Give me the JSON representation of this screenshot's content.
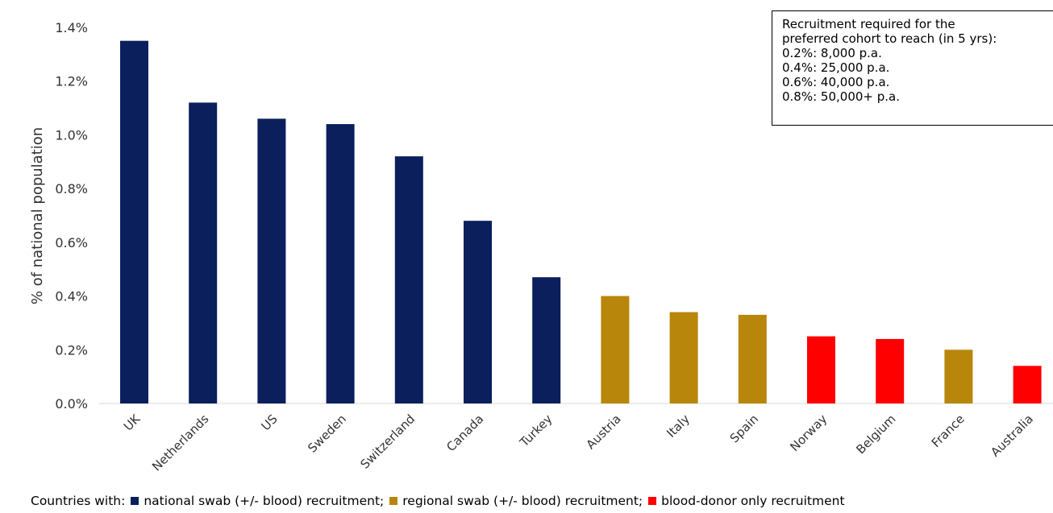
{
  "chart_data": {
    "type": "bar",
    "title": "",
    "xlabel": "",
    "ylabel": "% of national population",
    "ylim": [
      0,
      1.4
    ],
    "yticks": [
      "0.0%",
      "0.2%",
      "0.4%",
      "0.6%",
      "0.8%",
      "1.0%",
      "1.2%",
      "1.4%"
    ],
    "ytick_values": [
      0,
      0.2,
      0.4,
      0.6,
      0.8,
      1.0,
      1.2,
      1.4
    ],
    "grid": false,
    "categories": [
      "UK",
      "Netherlands",
      "US",
      "Sweden",
      "Switzerland",
      "Canada",
      "Turkey",
      "Austria",
      "Italy",
      "Spain",
      "Norway",
      "Belgium",
      "France",
      "Australia"
    ],
    "values": [
      1.35,
      1.12,
      1.06,
      1.04,
      0.92,
      0.68,
      0.47,
      0.4,
      0.34,
      0.33,
      0.25,
      0.24,
      0.2,
      0.14
    ],
    "groups": [
      "national",
      "national",
      "national",
      "national",
      "national",
      "national",
      "national",
      "regional",
      "regional",
      "regional",
      "blood-donor",
      "blood-donor",
      "regional",
      "blood-donor"
    ],
    "colors": {
      "national": "#0a1f5c",
      "regional": "#b8860b",
      "blood-donor": "#ff0000"
    }
  },
  "info_box": {
    "lines": [
      "Recruitment required for the",
      "preferred cohort to reach (in 5 yrs):",
      "0.2%: 8,000 p.a.",
      "0.4%: 25,000 p.a.",
      "0.6%: 40,000 p.a.",
      "0.8%: 50,000+ p.a."
    ]
  },
  "legend": {
    "prefix": "Countries with:",
    "items": [
      {
        "label": "national swab (+/- blood) recruitment;",
        "color": "#0a1f5c"
      },
      {
        "label": "regional swab (+/- blood) recruitment;",
        "color": "#b8860b"
      },
      {
        "label": "blood-donor only recruitment",
        "color": "#ff0000"
      }
    ]
  }
}
